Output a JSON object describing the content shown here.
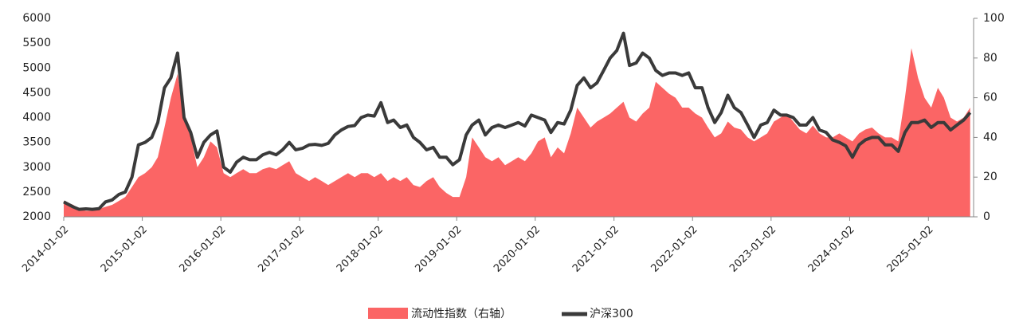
{
  "chart_data": {
    "type": "combo",
    "x": [
      "2014-01-02",
      "2014-02-15",
      "2014-03-15",
      "2014-04-15",
      "2014-05-15",
      "2014-06-15",
      "2014-07-15",
      "2014-08-15",
      "2014-09-15",
      "2014-10-15",
      "2014-11-15",
      "2014-12-15",
      "2015-01-15",
      "2015-02-15",
      "2015-03-15",
      "2015-04-15",
      "2015-05-15",
      "2015-06-15",
      "2015-07-15",
      "2015-08-15",
      "2015-09-15",
      "2015-10-15",
      "2015-11-15",
      "2015-12-15",
      "2016-01-15",
      "2016-02-15",
      "2016-03-15",
      "2016-04-15",
      "2016-05-15",
      "2016-06-15",
      "2016-07-15",
      "2016-08-15",
      "2016-09-15",
      "2016-10-15",
      "2016-11-15",
      "2016-12-15",
      "2017-01-15",
      "2017-02-15",
      "2017-03-15",
      "2017-04-15",
      "2017-05-15",
      "2017-06-15",
      "2017-07-15",
      "2017-08-15",
      "2017-09-15",
      "2017-10-15",
      "2017-11-15",
      "2017-12-15",
      "2018-01-15",
      "2018-02-15",
      "2018-03-15",
      "2018-04-15",
      "2018-05-15",
      "2018-06-15",
      "2018-07-15",
      "2018-08-15",
      "2018-09-15",
      "2018-10-15",
      "2018-11-15",
      "2018-12-15",
      "2019-01-15",
      "2019-02-15",
      "2019-03-15",
      "2019-04-15",
      "2019-05-15",
      "2019-06-15",
      "2019-07-15",
      "2019-08-15",
      "2019-09-15",
      "2019-10-15",
      "2019-11-15",
      "2019-12-15",
      "2020-01-15",
      "2020-02-15",
      "2020-03-15",
      "2020-04-15",
      "2020-05-15",
      "2020-06-15",
      "2020-07-15",
      "2020-08-15",
      "2020-09-15",
      "2020-10-15",
      "2020-11-15",
      "2020-12-15",
      "2021-01-15",
      "2021-02-15",
      "2021-03-15",
      "2021-04-15",
      "2021-05-15",
      "2021-06-15",
      "2021-07-15",
      "2021-08-15",
      "2021-09-15",
      "2021-10-15",
      "2021-11-15",
      "2021-12-15",
      "2022-01-15",
      "2022-02-15",
      "2022-03-15",
      "2022-04-15",
      "2022-05-15",
      "2022-06-15",
      "2022-07-15",
      "2022-08-15",
      "2022-09-15",
      "2022-10-15",
      "2022-11-15",
      "2022-12-15",
      "2023-01-15",
      "2023-02-15",
      "2023-03-15",
      "2023-04-15",
      "2023-05-15",
      "2023-06-15",
      "2023-07-15",
      "2023-08-15",
      "2023-09-15",
      "2023-10-15",
      "2023-11-15",
      "2023-12-15",
      "2024-01-15",
      "2024-02-15",
      "2024-03-15",
      "2024-04-15",
      "2024-05-15",
      "2024-06-15",
      "2024-07-15",
      "2024-08-15",
      "2024-09-15",
      "2024-10-15",
      "2024-11-15",
      "2024-12-15",
      "2025-01-15",
      "2025-02-15",
      "2025-03-15",
      "2025-04-15",
      "2025-05-15",
      "2025-06-15",
      "2025-07-15"
    ],
    "series": [
      {
        "name": "流动性指数（右轴）",
        "type": "area",
        "axis": "y2",
        "color": "#fb6565",
        "values": [
          8,
          6,
          4,
          3,
          3,
          4,
          5,
          6,
          8,
          10,
          15,
          20,
          22,
          25,
          30,
          45,
          60,
          72,
          50,
          40,
          25,
          30,
          38,
          35,
          22,
          20,
          22,
          24,
          22,
          22,
          24,
          25,
          24,
          26,
          28,
          22,
          20,
          18,
          20,
          18,
          16,
          18,
          20,
          22,
          20,
          22,
          22,
          20,
          22,
          18,
          20,
          18,
          20,
          16,
          15,
          18,
          20,
          15,
          12,
          10,
          10,
          20,
          40,
          35,
          30,
          28,
          30,
          26,
          28,
          30,
          28,
          32,
          38,
          40,
          30,
          35,
          32,
          42,
          55,
          50,
          45,
          48,
          50,
          52,
          55,
          58,
          50,
          48,
          52,
          55,
          68,
          65,
          62,
          60,
          55,
          55,
          52,
          50,
          45,
          40,
          42,
          48,
          45,
          44,
          40,
          38,
          40,
          42,
          48,
          50,
          52,
          48,
          44,
          42,
          46,
          42,
          40,
          40,
          42,
          40,
          38,
          42,
          44,
          45,
          42,
          40,
          40,
          38,
          60,
          85,
          70,
          60,
          55,
          65,
          60,
          50,
          48,
          50,
          55
        ]
      },
      {
        "name": "沪深300",
        "type": "line",
        "color": "#3a3a3a",
        "values": [
          2300,
          2200,
          2150,
          2160,
          2150,
          2165,
          2300,
          2340,
          2450,
          2500,
          2800,
          3450,
          3500,
          3600,
          3900,
          4600,
          4800,
          5300,
          4000,
          3700,
          3200,
          3500,
          3650,
          3730,
          3000,
          2900,
          3100,
          3200,
          3150,
          3150,
          3250,
          3300,
          3250,
          3350,
          3500,
          3350,
          3380,
          3450,
          3460,
          3440,
          3480,
          3650,
          3750,
          3820,
          3840,
          4000,
          4050,
          4030,
          4300,
          3900,
          3950,
          3800,
          3850,
          3600,
          3500,
          3350,
          3400,
          3200,
          3200,
          3050,
          3150,
          3650,
          3850,
          3950,
          3650,
          3800,
          3850,
          3800,
          3850,
          3900,
          3830,
          4050,
          4000,
          3950,
          3700,
          3900,
          3870,
          4150,
          4650,
          4800,
          4600,
          4700,
          4950,
          5200,
          5350,
          5700,
          5050,
          5100,
          5300,
          5200,
          4950,
          4850,
          4900,
          4900,
          4850,
          4900,
          4600,
          4600,
          4200,
          3900,
          4100,
          4450,
          4200,
          4100,
          3850,
          3600,
          3850,
          3900,
          4150,
          4050,
          4050,
          4000,
          3850,
          3850,
          4000,
          3750,
          3700,
          3550,
          3500,
          3430,
          3200,
          3450,
          3550,
          3600,
          3600,
          3450,
          3450,
          3320,
          3700,
          3900,
          3900,
          3950,
          3800,
          3900,
          3900,
          3750,
          3850,
          3950,
          4100
        ]
      }
    ],
    "xlim": [
      "2014-01-02",
      "2025-07-31"
    ],
    "xticks": [
      "2014-01-02",
      "2015-01-02",
      "2016-01-02",
      "2017-01-02",
      "2018-01-02",
      "2019-01-02",
      "2020-01-02",
      "2021-01-02",
      "2022-01-02",
      "2023-01-02",
      "2024-01-02",
      "2025-01-02"
    ],
    "ylim": [
      2000,
      6000
    ],
    "yticks": [
      2000,
      2500,
      3000,
      3500,
      4000,
      4500,
      5000,
      5500,
      6000
    ],
    "y2lim": [
      0,
      100
    ],
    "y2ticks": [
      0,
      20,
      40,
      60,
      80,
      100
    ],
    "legend": "bottom"
  }
}
